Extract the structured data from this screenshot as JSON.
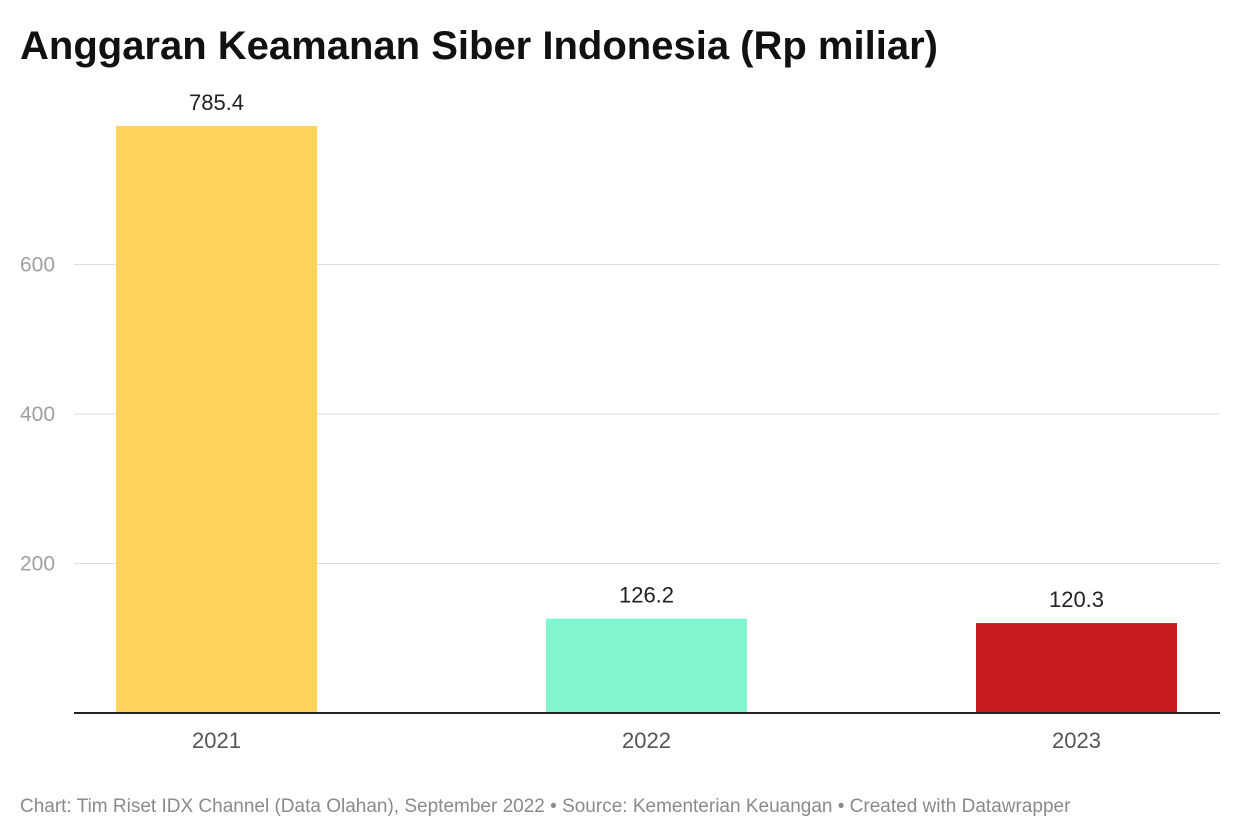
{
  "chart_data": {
    "type": "bar",
    "title": "Anggaran Keamanan Siber Indonesia (Rp miliar)",
    "categories": [
      "2021",
      "2022",
      "2023"
    ],
    "values": [
      785.4,
      126.2,
      120.3
    ],
    "value_labels": [
      "785.4",
      "126.2",
      "120.3"
    ],
    "colors": [
      "#fdd35c",
      "#80f5cf",
      "#c81c1e"
    ],
    "y_ticks": [
      200,
      400,
      600
    ],
    "y_tick_labels": [
      "200",
      "400",
      "600"
    ],
    "ylim": [
      0,
      800
    ],
    "grid": true,
    "xlabel": "",
    "ylabel": ""
  },
  "footer": {
    "text": "Chart: Tim Riset IDX Channel (Data Olahan), September 2022 • Source: Kementerian Keuangan • Created with Datawrapper"
  }
}
